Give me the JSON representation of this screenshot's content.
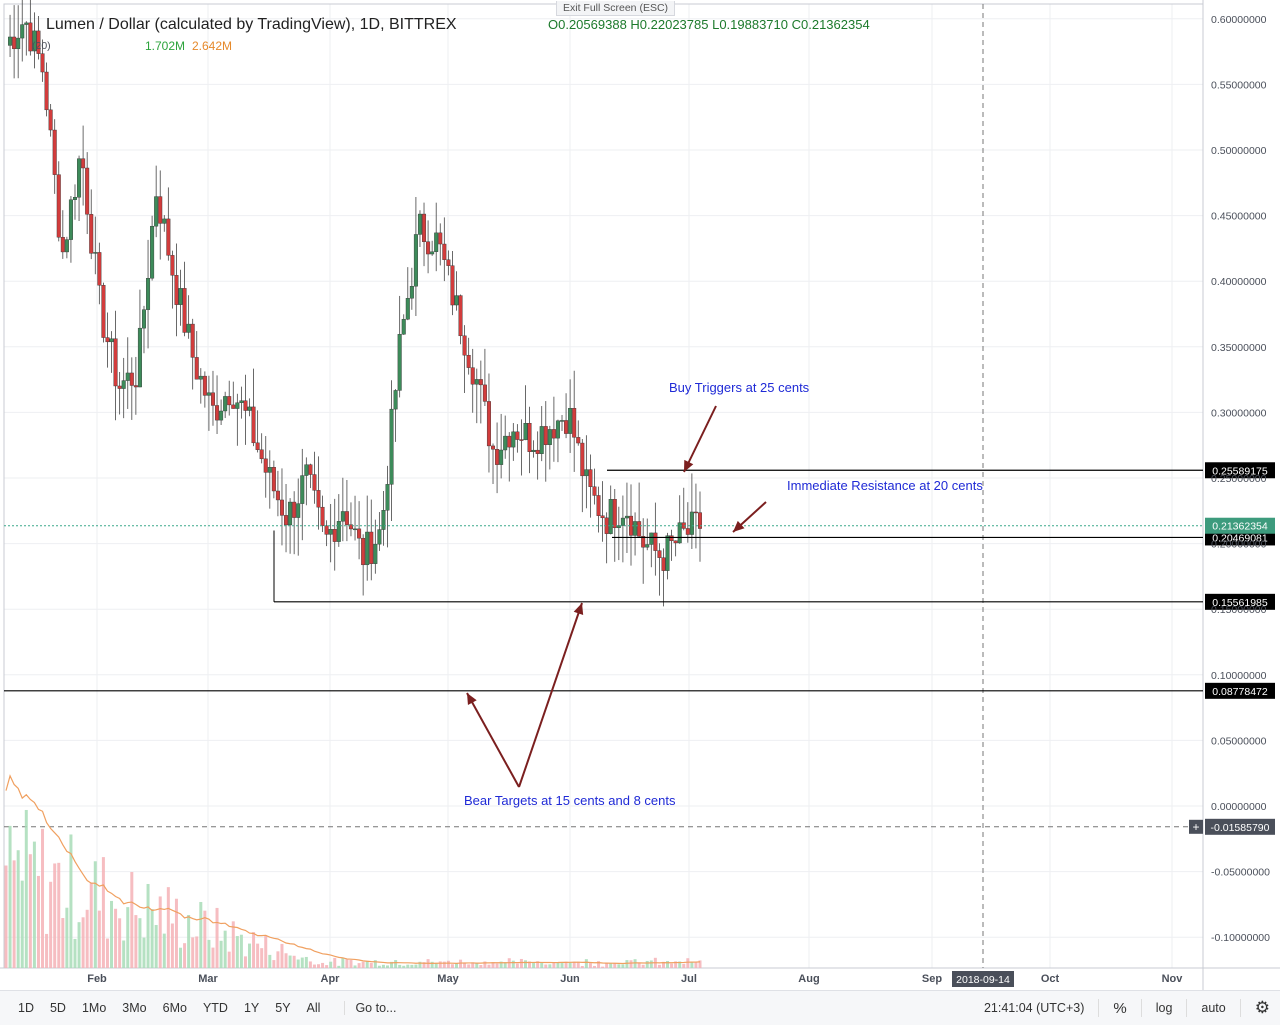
{
  "header": {
    "title": "Lumen / Dollar (calculated by TradingView), 1D, BITTREX",
    "ohlc": "O0.20569388  H0.22023785  L0.19883710  C0.21362354",
    "volume_label": "(20)",
    "volume_value_1": "1.702M",
    "volume_value_2": "2.642M",
    "exit_fullscreen": "Exit Full Screen (ESC)"
  },
  "toolbar": {
    "timeframes": [
      "1D",
      "5D",
      "1Mo",
      "3Mo",
      "6Mo",
      "YTD",
      "1Y",
      "5Y",
      "All"
    ],
    "goto_label": "Go to...",
    "clock": "21:41:04 (UTC+3)",
    "percent_label": "%",
    "log_label": "log",
    "auto_label": "auto"
  },
  "chart_data": {
    "type": "candlestick",
    "title": "Lumen / Dollar (calculated by TradingView), 1D, BITTREX",
    "y_ticks": [
      "0.60000000",
      "0.55000000",
      "0.50000000",
      "0.45000000",
      "0.40000000",
      "0.35000000",
      "0.30000000",
      "0.25000000",
      "0.20000000",
      "0.15000000",
      "0.10000000",
      "0.05000000",
      "0.00000000",
      "-0.05000000",
      "-0.10000000"
    ],
    "x_ticks": [
      "Feb",
      "Mar",
      "Apr",
      "May",
      "Jun",
      "Jul",
      "Aug",
      "Sep",
      "Oct",
      "Nov"
    ],
    "ylim": [
      -0.125,
      0.61
    ],
    "grid": true,
    "crosshair_date": "2018-09-14",
    "crosshair_price": "-0.01585790",
    "last_price": "0.21362354",
    "levels": [
      {
        "value": 0.25589175,
        "label": "0.25589175"
      },
      {
        "value": 0.20469081,
        "label": "0.20469081"
      },
      {
        "value": 0.15561985,
        "label": "0.15561985"
      },
      {
        "value": 0.08778472,
        "label": "0.08778472"
      }
    ],
    "annotations": [
      {
        "text": "Buy Triggers at 25 cents"
      },
      {
        "text": "Immediate Resistance at 20 cents"
      },
      {
        "text": "Bear Targets at 15 cents and 8 cents"
      }
    ],
    "close_series": [
      0.58,
      0.6,
      0.56,
      0.42,
      0.5,
      0.38,
      0.32,
      0.33,
      0.47,
      0.4,
      0.34,
      0.3,
      0.32,
      0.29,
      0.25,
      0.22,
      0.25,
      0.2,
      0.23,
      0.19,
      0.21,
      0.35,
      0.44,
      0.43,
      0.38,
      0.33,
      0.27,
      0.29,
      0.28,
      0.29,
      0.3,
      0.24,
      0.22,
      0.23,
      0.2,
      0.19,
      0.205,
      0.214
    ],
    "colors": {
      "up": "#3d8b5a",
      "down": "#d23c3c",
      "level": "#000000",
      "annotation": "#1f2ad6",
      "arrow": "#7b1f1f",
      "ma": "#f0a060"
    }
  }
}
